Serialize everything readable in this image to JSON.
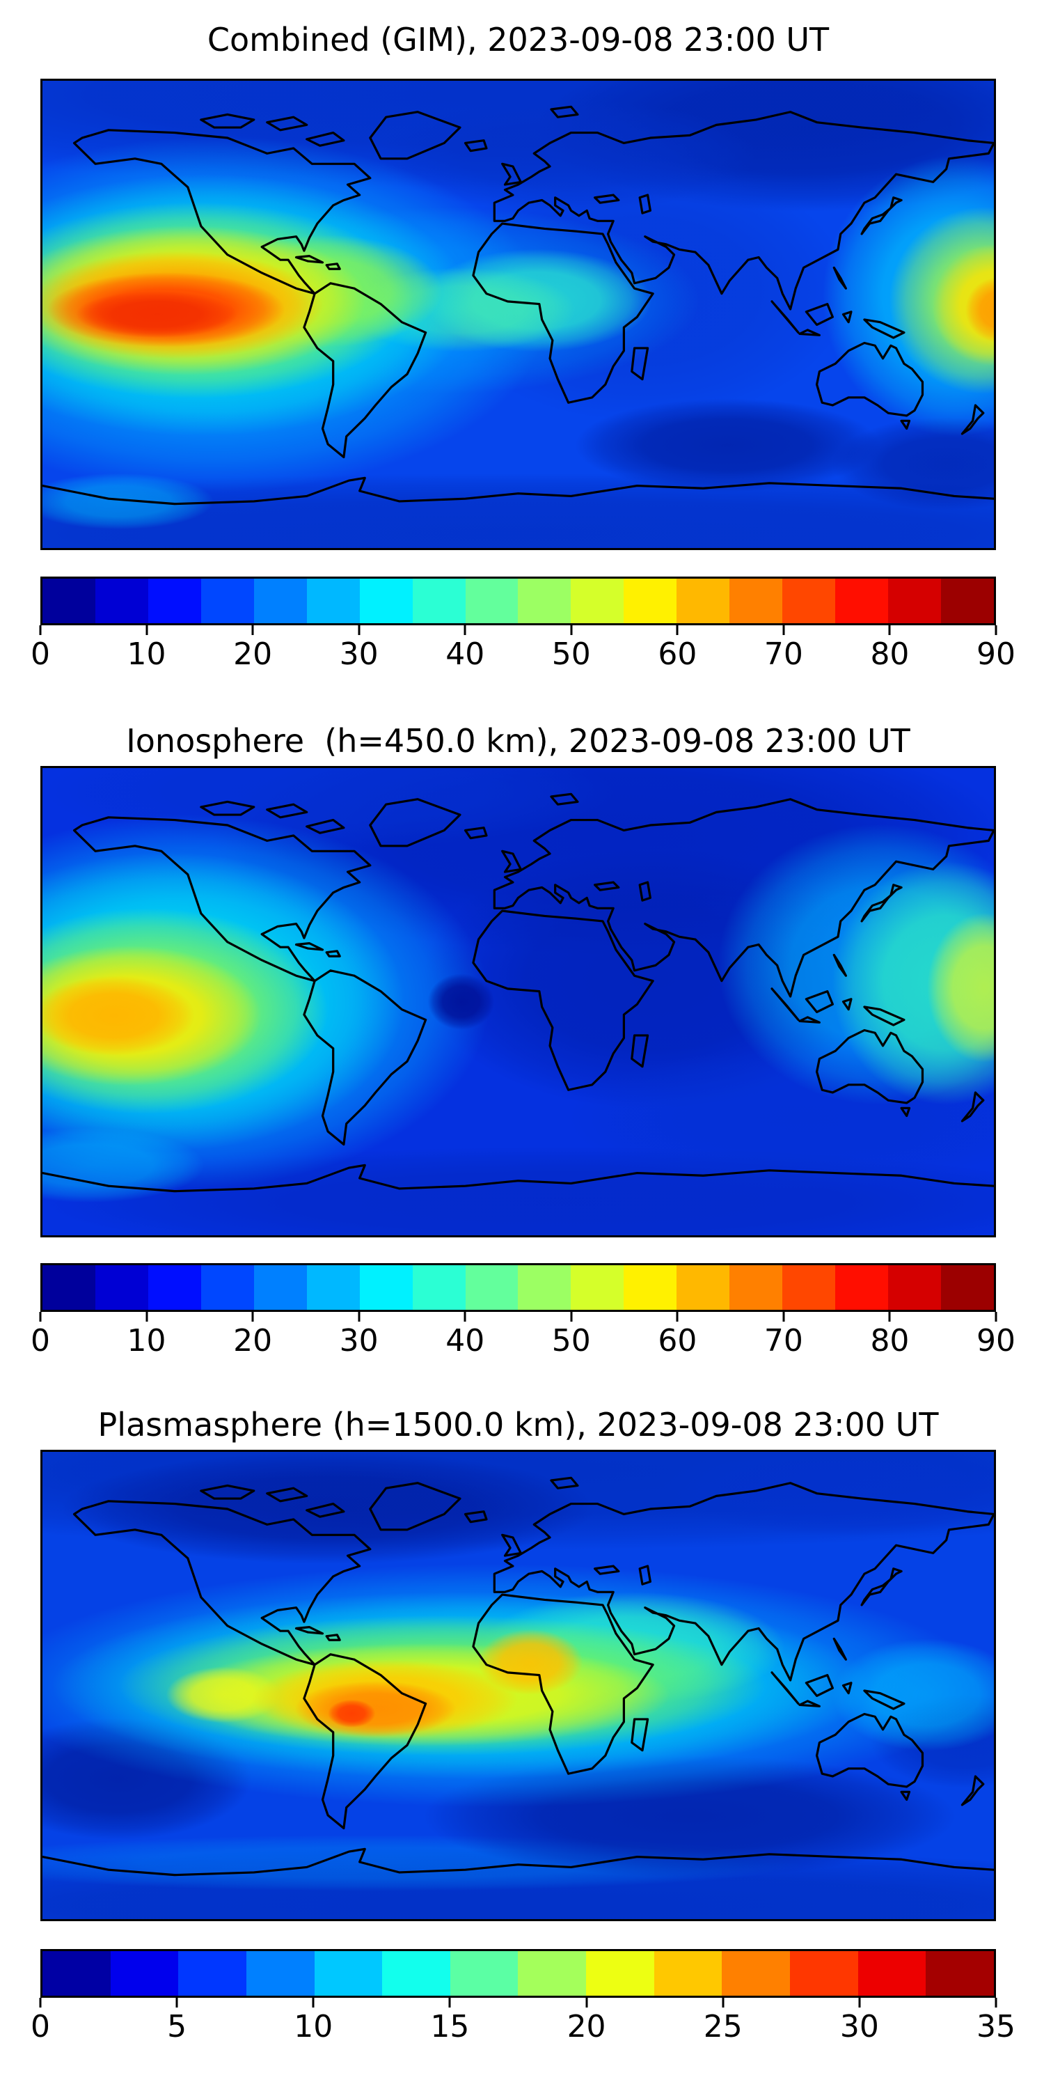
{
  "figure": {
    "background": "#ffffff",
    "frame_color": "#000000",
    "coastline_color": "#000000",
    "text_color": "#000000"
  },
  "chart_data": [
    {
      "type": "heatmap",
      "title": "Combined (GIM), 2023-09-08 23:00 UT",
      "projection": "plate-carree world map, lon -180..180 (left..right), lat 90N..90S (top..bottom)",
      "grid": false,
      "colorbar": {
        "orientation": "horizontal",
        "position": "below",
        "vmin": 0,
        "vmax": 90,
        "ticks": [
          0,
          10,
          20,
          30,
          40,
          50,
          60,
          70,
          80,
          90
        ],
        "segments": 18,
        "colormap": "jet"
      },
      "base_color": "#0645EC",
      "features": [
        {
          "label": "equatorial-anomaly-peak-east-pacific",
          "lon": -120,
          "lat": 0,
          "value": 82
        },
        {
          "label": "secondary-peak-west-pacific-edge",
          "lon": 178,
          "lat": 4,
          "value": 62
        },
        {
          "label": "africa-equator-enhancement",
          "lon": 8,
          "lat": 2,
          "value": 38
        },
        {
          "label": "minimum-south-indian-ocean",
          "lon": 80,
          "lat": -50,
          "value": 4
        },
        {
          "label": "minimum-northeast-eurasia",
          "lon": 110,
          "lat": 70,
          "value": 6
        }
      ],
      "render_blobs": [
        {
          "x": 0.5,
          "y": 0.03,
          "rx": 0.8,
          "ry": 0.2,
          "color": "#0331C8",
          "op": 0.95
        },
        {
          "x": 0.8,
          "y": 0.1,
          "rx": 0.28,
          "ry": 0.18,
          "color": "#0126B2",
          "op": 0.9
        },
        {
          "x": 0.55,
          "y": 0.16,
          "rx": 0.2,
          "ry": 0.12,
          "color": "#0430C6",
          "op": 0.7
        },
        {
          "x": 0.5,
          "y": 0.97,
          "rx": 0.85,
          "ry": 0.13,
          "color": "#0331C8",
          "op": 0.9
        },
        {
          "x": 0.72,
          "y": 0.78,
          "rx": 0.16,
          "ry": 0.1,
          "color": "#0121A8",
          "op": 0.85
        },
        {
          "x": 0.95,
          "y": 0.82,
          "rx": 0.12,
          "ry": 0.1,
          "color": "#0121A8",
          "op": 0.7
        },
        {
          "x": 0.63,
          "y": 0.45,
          "rx": 0.22,
          "ry": 0.28,
          "color": "#0536D2",
          "op": 0.6
        },
        {
          "x": 0.18,
          "y": 0.5,
          "rx": 0.35,
          "ry": 0.38,
          "color": "#00A6FF",
          "op": 0.85
        },
        {
          "x": 0.42,
          "y": 0.47,
          "rx": 0.27,
          "ry": 0.2,
          "color": "#0096FF",
          "op": 0.55
        },
        {
          "x": 0.96,
          "y": 0.46,
          "rx": 0.14,
          "ry": 0.3,
          "color": "#00C2FF",
          "op": 0.8
        },
        {
          "x": 0.52,
          "y": 0.47,
          "rx": 0.12,
          "ry": 0.11,
          "color": "#2BE9CE",
          "op": 0.8
        },
        {
          "x": 0.44,
          "y": 0.49,
          "rx": 0.12,
          "ry": 0.09,
          "color": "#4DEFA8",
          "op": 0.6
        },
        {
          "x": 0.17,
          "y": 0.48,
          "rx": 0.28,
          "ry": 0.28,
          "color": "#00E5EE",
          "op": 0.8
        },
        {
          "x": 0.3,
          "y": 0.45,
          "rx": 0.12,
          "ry": 0.12,
          "color": "#9DF83E",
          "op": 0.7
        },
        {
          "x": 0.16,
          "y": 0.47,
          "rx": 0.23,
          "ry": 0.21,
          "color": "#86F74F",
          "op": 0.85
        },
        {
          "x": 0.15,
          "y": 0.47,
          "rx": 0.19,
          "ry": 0.16,
          "color": "#FFEE00",
          "op": 0.9
        },
        {
          "x": 0.14,
          "y": 0.48,
          "rx": 0.155,
          "ry": 0.115,
          "color": "#FFA000",
          "op": 0.95
        },
        {
          "x": 0.13,
          "y": 0.49,
          "rx": 0.125,
          "ry": 0.08,
          "color": "#FF4400",
          "op": 0.95
        },
        {
          "x": 0.12,
          "y": 0.5,
          "rx": 0.085,
          "ry": 0.05,
          "color": "#F22C00",
          "op": 0.9
        },
        {
          "x": 0.99,
          "y": 0.47,
          "rx": 0.1,
          "ry": 0.2,
          "color": "#A5F842",
          "op": 0.8
        },
        {
          "x": 1.0,
          "y": 0.48,
          "rx": 0.065,
          "ry": 0.13,
          "color": "#FFE400",
          "op": 0.9
        },
        {
          "x": 1.005,
          "y": 0.49,
          "rx": 0.035,
          "ry": 0.07,
          "color": "#FF9800",
          "op": 0.9
        },
        {
          "x": 0.08,
          "y": 0.9,
          "rx": 0.1,
          "ry": 0.06,
          "color": "#00C8FF",
          "op": 0.5
        }
      ]
    },
    {
      "type": "heatmap",
      "title": "Ionosphere  (h=450.0 km), 2023-09-08 23:00 UT",
      "projection": "plate-carree world map, lon -180..180 (left..right), lat 90N..90S (top..bottom)",
      "grid": false,
      "colorbar": {
        "orientation": "horizontal",
        "position": "below",
        "vmin": 0,
        "vmax": 90,
        "ticks": [
          0,
          10,
          20,
          30,
          40,
          50,
          60,
          70,
          80,
          90
        ],
        "segments": 18,
        "colormap": "jet"
      },
      "base_color": "#0531E0",
      "features": [
        {
          "label": "peak-east-pacific",
          "lon": -152,
          "lat": -5,
          "value": 62
        },
        {
          "label": "secondary-peak-west-pacific-edge",
          "lon": 176,
          "lat": 5,
          "value": 52
        },
        {
          "label": "minimum-gulf-of-guinea",
          "lon": -8,
          "lat": 0,
          "value": 4
        },
        {
          "label": "minimum-eurasia-indian-ocean",
          "lon": 60,
          "lat": 20,
          "value": 6
        }
      ],
      "render_blobs": [
        {
          "x": 0.6,
          "y": 0.15,
          "rx": 0.42,
          "ry": 0.25,
          "color": "#0122BC",
          "op": 0.85
        },
        {
          "x": 0.64,
          "y": 0.45,
          "rx": 0.24,
          "ry": 0.28,
          "color": "#0120B4",
          "op": 0.8
        },
        {
          "x": 0.3,
          "y": 0.05,
          "rx": 0.3,
          "ry": 0.12,
          "color": "#0430D0",
          "op": 0.7
        },
        {
          "x": 0.55,
          "y": 0.93,
          "rx": 0.55,
          "ry": 0.12,
          "color": "#0329C6",
          "op": 0.8
        },
        {
          "x": 0.8,
          "y": 0.75,
          "rx": 0.25,
          "ry": 0.15,
          "color": "#0430D0",
          "op": 0.6
        },
        {
          "x": 0.15,
          "y": 0.5,
          "rx": 0.32,
          "ry": 0.4,
          "color": "#00A8FF",
          "op": 0.85
        },
        {
          "x": 0.13,
          "y": 0.5,
          "rx": 0.25,
          "ry": 0.32,
          "color": "#00E2F0",
          "op": 0.8
        },
        {
          "x": 0.88,
          "y": 0.42,
          "rx": 0.17,
          "ry": 0.3,
          "color": "#00BAFF",
          "op": 0.65
        },
        {
          "x": 0.95,
          "y": 0.46,
          "rx": 0.12,
          "ry": 0.26,
          "color": "#2FEEC2",
          "op": 0.8
        },
        {
          "x": 0.99,
          "y": 0.47,
          "rx": 0.06,
          "ry": 0.16,
          "color": "#C8F43C",
          "op": 0.85
        },
        {
          "x": 0.44,
          "y": 0.5,
          "rx": 0.035,
          "ry": 0.06,
          "color": "#000F96",
          "op": 0.9
        },
        {
          "x": 0.11,
          "y": 0.52,
          "rx": 0.19,
          "ry": 0.22,
          "color": "#8CF84C",
          "op": 0.85
        },
        {
          "x": 0.09,
          "y": 0.53,
          "rx": 0.14,
          "ry": 0.15,
          "color": "#FFEB00",
          "op": 0.9
        },
        {
          "x": 0.075,
          "y": 0.53,
          "rx": 0.085,
          "ry": 0.085,
          "color": "#FFB400",
          "op": 0.95
        },
        {
          "x": 0.05,
          "y": 0.85,
          "rx": 0.12,
          "ry": 0.08,
          "color": "#00C8FF",
          "op": 0.5
        }
      ]
    },
    {
      "type": "heatmap",
      "title": "Plasmasphere (h=1500.0 km), 2023-09-08 23:00 UT",
      "projection": "plate-carree world map, lon -180..180 (left..right), lat 90N..90S (top..bottom)",
      "grid": false,
      "colorbar": {
        "orientation": "horizontal",
        "position": "below",
        "vmin": 0,
        "vmax": 35,
        "ticks": [
          0,
          5,
          10,
          15,
          20,
          25,
          30,
          35
        ],
        "segments": 14,
        "colormap": "jet"
      },
      "base_color": "#0542E6",
      "features": [
        {
          "label": "plasmaspheric-peak-south-america",
          "lon": -63,
          "lat": -11,
          "value": 30
        },
        {
          "label": "secondary-peak-west-africa",
          "lon": 5,
          "lat": 9,
          "value": 26
        },
        {
          "label": "equatorial-band",
          "lon": 0,
          "lat": -4,
          "value": 18
        },
        {
          "label": "polar-minimum-north",
          "lon": -80,
          "lat": 68,
          "value": 3
        },
        {
          "label": "minimum-south-indian-ocean",
          "lon": 65,
          "lat": -52,
          "value": 3
        }
      ],
      "render_blobs": [
        {
          "x": 0.5,
          "y": 0.04,
          "rx": 0.85,
          "ry": 0.17,
          "color": "#0230C4",
          "op": 0.95
        },
        {
          "x": 0.3,
          "y": 0.12,
          "rx": 0.28,
          "ry": 0.12,
          "color": "#011FA3",
          "op": 0.8
        },
        {
          "x": 0.85,
          "y": 0.08,
          "rx": 0.2,
          "ry": 0.1,
          "color": "#0331CC",
          "op": 0.8
        },
        {
          "x": 0.5,
          "y": 0.97,
          "rx": 0.85,
          "ry": 0.12,
          "color": "#0230C4",
          "op": 0.9
        },
        {
          "x": 0.35,
          "y": 0.88,
          "rx": 0.45,
          "ry": 0.06,
          "color": "#0077F0",
          "op": 0.55
        },
        {
          "x": 0.08,
          "y": 0.7,
          "rx": 0.14,
          "ry": 0.13,
          "color": "#011FA3",
          "op": 0.85
        },
        {
          "x": 0.68,
          "y": 0.78,
          "rx": 0.28,
          "ry": 0.13,
          "color": "#011FA3",
          "op": 0.8
        },
        {
          "x": 0.97,
          "y": 0.62,
          "rx": 0.1,
          "ry": 0.1,
          "color": "#0128B8",
          "op": 0.6
        },
        {
          "x": 0.47,
          "y": 0.5,
          "rx": 0.52,
          "ry": 0.26,
          "color": "#00A2FF",
          "op": 0.8
        },
        {
          "x": 0.44,
          "y": 0.5,
          "rx": 0.43,
          "ry": 0.2,
          "color": "#00DDEE",
          "op": 0.75
        },
        {
          "x": 0.62,
          "y": 0.42,
          "rx": 0.16,
          "ry": 0.12,
          "color": "#2FEEC6",
          "op": 0.7
        },
        {
          "x": 0.93,
          "y": 0.52,
          "rx": 0.1,
          "ry": 0.12,
          "color": "#00BEFF",
          "op": 0.6
        },
        {
          "x": 0.42,
          "y": 0.5,
          "rx": 0.34,
          "ry": 0.15,
          "color": "#7EF64B",
          "op": 0.8
        },
        {
          "x": 0.4,
          "y": 0.52,
          "rx": 0.26,
          "ry": 0.11,
          "color": "#EFFA0C",
          "op": 0.85
        },
        {
          "x": 0.19,
          "y": 0.52,
          "rx": 0.06,
          "ry": 0.06,
          "color": "#F2F816",
          "op": 0.8
        },
        {
          "x": 0.36,
          "y": 0.53,
          "rx": 0.14,
          "ry": 0.085,
          "color": "#FFC800",
          "op": 0.9
        },
        {
          "x": 0.513,
          "y": 0.45,
          "rx": 0.055,
          "ry": 0.07,
          "color": "#FFC000",
          "op": 0.9
        },
        {
          "x": 0.35,
          "y": 0.55,
          "rx": 0.085,
          "ry": 0.06,
          "color": "#FF8C00",
          "op": 0.95
        },
        {
          "x": 0.325,
          "y": 0.56,
          "rx": 0.025,
          "ry": 0.03,
          "color": "#FF3C00",
          "op": 0.95
        }
      ]
    }
  ],
  "layout_values": {
    "map_tops": [
      113,
      1100,
      2082
    ],
    "title_tops": [
      30,
      1037,
      2019
    ],
    "cbar_tops": [
      828,
      1814,
      2799
    ],
    "tick_tops": [
      898,
      1884,
      2869
    ]
  }
}
